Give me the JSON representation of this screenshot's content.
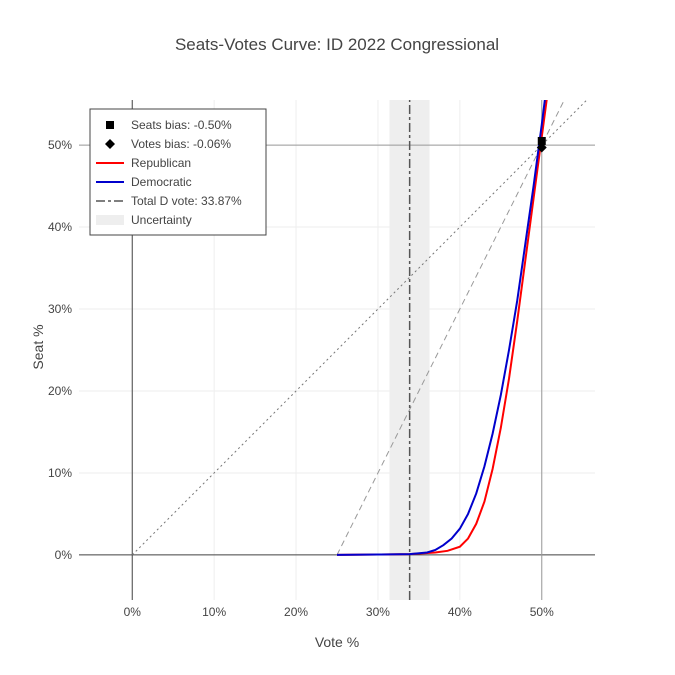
{
  "chart_data": {
    "type": "line",
    "title": "Seats-Votes Curve: ID 2022 Congressional",
    "xlabel": "Vote %",
    "ylabel": "Seat %",
    "xlim": [
      -6.5,
      56.5
    ],
    "ylim": [
      -5.5,
      55.5
    ],
    "x_ticks": [
      0,
      10,
      20,
      30,
      40,
      50
    ],
    "x_tick_labels": [
      "0%",
      "10%",
      "20%",
      "30%",
      "40%",
      "50%"
    ],
    "y_ticks": [
      0,
      10,
      20,
      30,
      40,
      50
    ],
    "y_tick_labels": [
      "0%",
      "10%",
      "20%",
      "30%",
      "40%",
      "50%"
    ],
    "grid": true,
    "legend_position": "top-left",
    "series": [
      {
        "name": "Republican",
        "color": "#ff0000",
        "x": [
          25,
          30,
          33.87,
          37,
          38.5,
          40,
          41,
          42,
          43,
          44,
          45,
          46,
          47,
          48,
          49,
          50,
          51,
          51.2
        ],
        "y": [
          0,
          0.05,
          0.1,
          0.3,
          0.5,
          1.0,
          2.0,
          3.8,
          6.5,
          10.5,
          15.5,
          21.5,
          28.5,
          36,
          43.5,
          51,
          58.5,
          60
        ]
      },
      {
        "name": "Democratic",
        "color": "#0000cc",
        "x": [
          25,
          30,
          33.87,
          36,
          37,
          38,
          39,
          40,
          41,
          42,
          43,
          44,
          45,
          46,
          47,
          48,
          49,
          50,
          50.5,
          50.9
        ],
        "y": [
          0,
          0.05,
          0.1,
          0.3,
          0.6,
          1.2,
          2.0,
          3.2,
          5.0,
          7.5,
          10.8,
          14.8,
          19.5,
          25,
          31,
          38,
          45,
          52.5,
          56.5,
          60
        ]
      },
      {
        "name": "Seats bias: -0.50%",
        "marker": "square",
        "color": "#000000",
        "x": [
          50
        ],
        "y": [
          50.5
        ]
      },
      {
        "name": "Votes bias: -0.06%",
        "marker": "diamond",
        "color": "#000000",
        "x": [
          50
        ],
        "y": [
          49.7
        ]
      },
      {
        "name": "Total D vote: 33.87%",
        "style": "dashdot-vertical",
        "color": "#555555",
        "x": [
          33.87,
          33.87
        ],
        "y": [
          -5.5,
          55.5
        ]
      },
      {
        "name": "Uncertainty",
        "style": "band",
        "color": "#eeeeee",
        "x": [
          31.4,
          36.3
        ]
      }
    ],
    "reference_lines": [
      {
        "style": "dotted",
        "color": "#777777",
        "x": [
          0,
          55.5
        ],
        "y": [
          0,
          55.5
        ]
      },
      {
        "style": "dashed",
        "color": "#999999",
        "x": [
          25,
          52.75
        ],
        "y": [
          0,
          55.5
        ]
      },
      {
        "style": "solid",
        "color": "#999999",
        "x": [
          50,
          50
        ],
        "y": [
          -5.5,
          55.5
        ]
      },
      {
        "style": "solid",
        "color": "#999999",
        "x": [
          -6.5,
          56.5
        ],
        "y": [
          50,
          50
        ]
      }
    ]
  }
}
